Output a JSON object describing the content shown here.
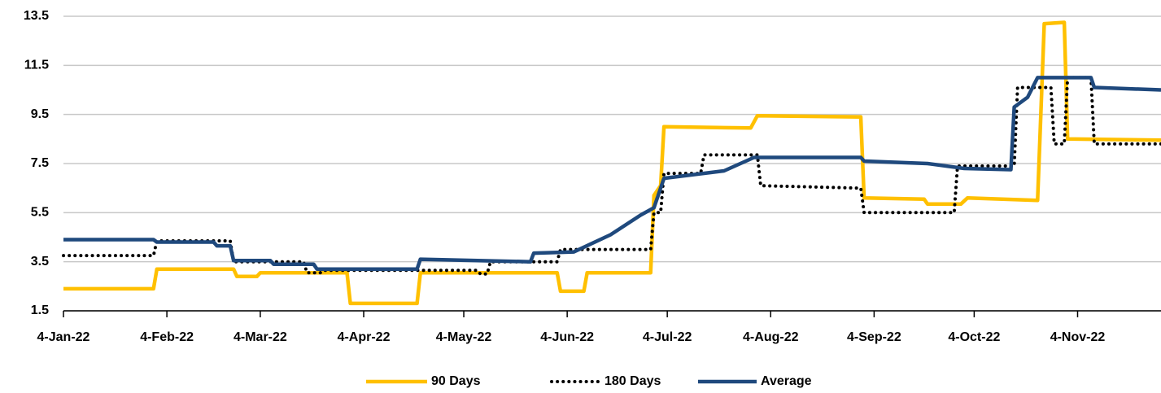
{
  "chart_data": {
    "type": "line",
    "xlim": [
      "2022-01-04",
      "2022-11-29"
    ],
    "xticks": [
      {
        "value": "2022-01-04",
        "label": "4-Jan-22"
      },
      {
        "value": "2022-02-04",
        "label": "4-Feb-22"
      },
      {
        "value": "2022-03-04",
        "label": "4-Mar-22"
      },
      {
        "value": "2022-04-04",
        "label": "4-Apr-22"
      },
      {
        "value": "2022-05-04",
        "label": "4-May-22"
      },
      {
        "value": "2022-06-04",
        "label": "4-Jun-22"
      },
      {
        "value": "2022-07-04",
        "label": "4-Jul-22"
      },
      {
        "value": "2022-08-04",
        "label": "4-Aug-22"
      },
      {
        "value": "2022-09-04",
        "label": "4-Sep-22"
      },
      {
        "value": "2022-10-04",
        "label": "4-Oct-22"
      },
      {
        "value": "2022-11-04",
        "label": "4-Nov-22"
      }
    ],
    "ylim": [
      1.5,
      13.5
    ],
    "yticks": [
      1.5,
      3.5,
      5.5,
      7.5,
      9.5,
      11.5,
      13.5
    ],
    "grid": true,
    "legend": "bottom",
    "series": [
      {
        "name": "90 Days",
        "color": "#ffc000",
        "style": "solid",
        "x": [
          "2022-01-04",
          "2022-01-31",
          "2022-02-01",
          "2022-02-24",
          "2022-02-25",
          "2022-03-03",
          "2022-03-04",
          "2022-03-30",
          "2022-03-31",
          "2022-04-20",
          "2022-04-21",
          "2022-06-01",
          "2022-06-02",
          "2022-06-09",
          "2022-06-10",
          "2022-06-29",
          "2022-06-30",
          "2022-07-02",
          "2022-07-03",
          "2022-07-29",
          "2022-07-31",
          "2022-08-31",
          "2022-09-01",
          "2022-09-19",
          "2022-09-20",
          "2022-09-30",
          "2022-10-02",
          "2022-10-23",
          "2022-10-25",
          "2022-10-31",
          "2022-11-01",
          "2022-11-29"
        ],
        "values": [
          2.4,
          2.4,
          3.2,
          3.2,
          2.9,
          2.9,
          3.05,
          3.05,
          1.8,
          1.8,
          3.05,
          3.05,
          2.3,
          2.3,
          3.05,
          3.05,
          6.2,
          6.6,
          9.0,
          8.95,
          9.45,
          9.4,
          6.1,
          6.05,
          5.85,
          5.85,
          6.1,
          6.0,
          13.2,
          13.25,
          8.5,
          8.45
        ]
      },
      {
        "name": "180 Days",
        "color": "#000000",
        "style": "dotted",
        "x": [
          "2022-01-04",
          "2022-01-31",
          "2022-02-01",
          "2022-02-23",
          "2022-02-24",
          "2022-03-17",
          "2022-03-18",
          "2022-03-22",
          "2022-03-23",
          "2022-05-08",
          "2022-05-09",
          "2022-05-11",
          "2022-05-12",
          "2022-06-01",
          "2022-06-02",
          "2022-06-29",
          "2022-06-30",
          "2022-07-02",
          "2022-07-03",
          "2022-07-14",
          "2022-07-15",
          "2022-07-31",
          "2022-08-01",
          "2022-08-31",
          "2022-09-01",
          "2022-09-28",
          "2022-09-29",
          "2022-10-16",
          "2022-10-17",
          "2022-10-27",
          "2022-10-28",
          "2022-10-31",
          "2022-11-01",
          "2022-11-08",
          "2022-11-09",
          "2022-11-29"
        ],
        "values": [
          3.75,
          3.75,
          4.35,
          4.35,
          3.5,
          3.5,
          3.05,
          3.05,
          3.15,
          3.15,
          3.0,
          3.0,
          3.5,
          3.5,
          4.0,
          4.0,
          5.5,
          5.5,
          7.1,
          7.1,
          7.85,
          7.85,
          6.6,
          6.5,
          5.5,
          5.5,
          7.4,
          7.4,
          10.6,
          10.6,
          8.3,
          8.3,
          11.0,
          11.0,
          8.3,
          8.3
        ]
      },
      {
        "name": "Average",
        "color": "#1f497d",
        "style": "solid",
        "x": [
          "2022-01-04",
          "2022-01-31",
          "2022-02-01",
          "2022-02-18",
          "2022-02-19",
          "2022-02-23",
          "2022-02-24",
          "2022-03-07",
          "2022-03-08",
          "2022-03-20",
          "2022-03-21",
          "2022-04-20",
          "2022-04-21",
          "2022-05-24",
          "2022-05-25",
          "2022-06-06",
          "2022-06-17",
          "2022-06-26",
          "2022-06-30",
          "2022-07-03",
          "2022-07-21",
          "2022-07-30",
          "2022-08-31",
          "2022-09-01",
          "2022-09-20",
          "2022-10-01",
          "2022-10-15",
          "2022-10-16",
          "2022-10-20",
          "2022-10-23",
          "2022-11-08",
          "2022-11-09",
          "2022-11-29"
        ],
        "values": [
          4.4,
          4.4,
          4.3,
          4.3,
          4.15,
          4.15,
          3.55,
          3.55,
          3.4,
          3.4,
          3.2,
          3.2,
          3.6,
          3.5,
          3.85,
          3.9,
          4.6,
          5.4,
          5.7,
          6.9,
          7.2,
          7.75,
          7.75,
          7.6,
          7.5,
          7.3,
          7.25,
          9.8,
          10.2,
          11.0,
          11.0,
          10.6,
          10.5
        ]
      }
    ]
  }
}
